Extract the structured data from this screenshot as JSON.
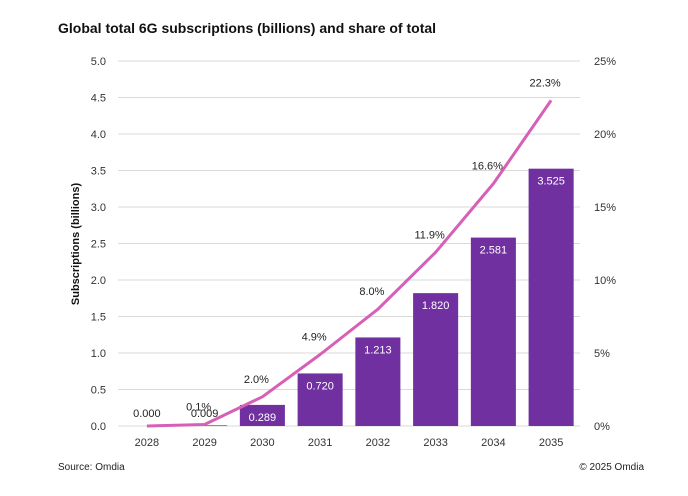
{
  "title": "Global total 6G subscriptions (billions) and share of total",
  "source": "Source: Omdia",
  "copyright": "© 2025 Omdia",
  "chart_data": {
    "type": "bar",
    "title": "Global total 6G subscriptions (billions) and share of total",
    "categories": [
      "2028",
      "2029",
      "2030",
      "2031",
      "2032",
      "2033",
      "2034",
      "2035"
    ],
    "ylabel": "Subscriptions (billions)",
    "ylim": [
      0,
      5.0
    ],
    "yticks": [
      "0.0",
      "0.5",
      "1.0",
      "1.5",
      "2.0",
      "2.5",
      "3.0",
      "3.5",
      "4.0",
      "4.5",
      "5.0"
    ],
    "y2lim": [
      0,
      25
    ],
    "y2ticks": [
      "0%",
      "5%",
      "10%",
      "15%",
      "20%",
      "25%"
    ],
    "grid": true,
    "colors": {
      "bar": "#7030A0",
      "line": "#D660B8",
      "grid": "#D9D9D9"
    },
    "series": [
      {
        "type": "bar",
        "axis": "left",
        "values": [
          0.0,
          0.009,
          0.289,
          0.72,
          1.213,
          1.82,
          2.581,
          3.525
        ],
        "labels": [
          "0.000",
          "0.009",
          "0.289",
          "0.720",
          "1.213",
          "1.820",
          "2.581",
          "3.525"
        ]
      },
      {
        "type": "line",
        "axis": "right",
        "values": [
          0.0,
          0.1,
          2.0,
          4.9,
          8.0,
          11.9,
          16.6,
          22.3
        ],
        "labels": [
          "",
          "0.1%",
          "2.0%",
          "4.9%",
          "8.0%",
          "11.9%",
          "16.6%",
          "22.3%"
        ]
      }
    ]
  }
}
